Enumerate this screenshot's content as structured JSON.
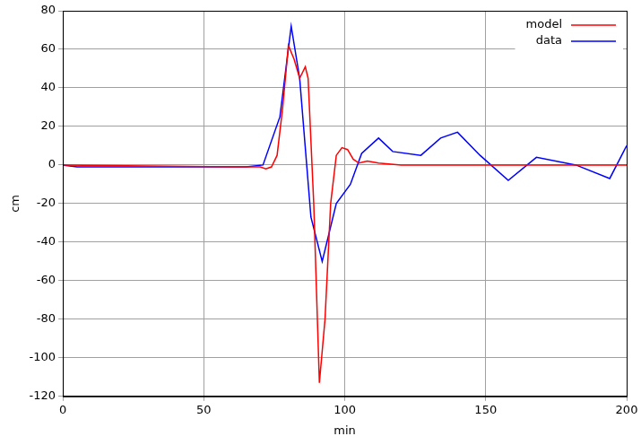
{
  "chart_data": {
    "type": "line",
    "x_label": "min",
    "y_label": "cm",
    "xlim": [
      0,
      200
    ],
    "xticks": [
      0,
      50,
      100,
      150,
      200
    ],
    "ylim": [
      -120,
      80
    ],
    "yticks": [
      -120,
      -100,
      -80,
      -60,
      -40,
      -20,
      0,
      20,
      40,
      60,
      80
    ],
    "grid": true,
    "legend": "upper right",
    "series": [
      {
        "name": "model",
        "color": "#ff0000",
        "x": [
          0,
          60,
          70,
          72,
          74,
          76,
          78,
          80,
          82,
          84,
          86,
          87,
          89,
          91,
          93,
          95,
          97,
          99,
          101,
          103,
          105,
          108,
          112,
          120,
          200
        ],
        "values": [
          0,
          -1,
          -1,
          -2,
          -1,
          5,
          30,
          62,
          55,
          45,
          51,
          45,
          -20,
          -113,
          -80,
          -20,
          5,
          9,
          8,
          3,
          1,
          2,
          1,
          0,
          0
        ]
      },
      {
        "name": "data",
        "color": "#0000ff",
        "x": [
          0,
          5,
          58,
          65,
          71,
          77,
          81,
          84,
          88,
          92,
          97,
          102,
          106,
          112,
          117,
          127,
          134,
          140,
          148,
          158,
          168,
          182,
          194,
          200
        ],
        "values": [
          0,
          -1,
          -1,
          -1,
          0,
          25,
          72,
          45,
          -27,
          -50,
          -20,
          -10,
          6,
          14,
          7,
          5,
          14,
          17,
          5,
          -8,
          4,
          0,
          -7,
          10
        ]
      }
    ]
  }
}
